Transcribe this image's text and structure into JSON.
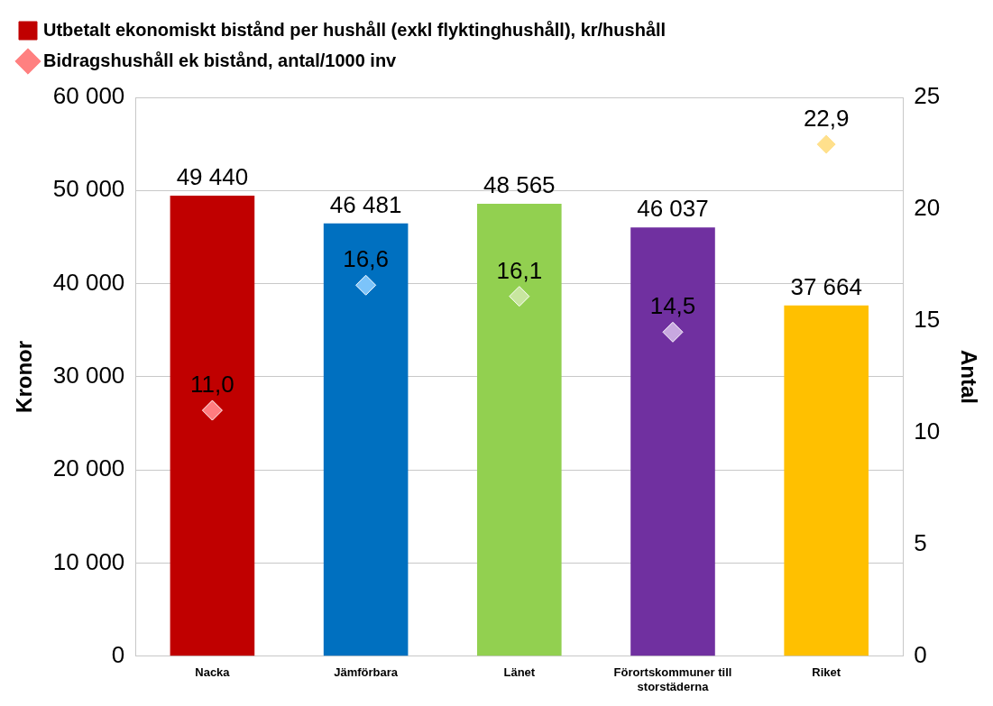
{
  "chart_data": {
    "type": "bar",
    "categories": [
      "Nacka",
      "Jämförbara",
      "Länet",
      "Förortskommuner till storstäderna",
      "Riket"
    ],
    "ylabel": "Kronor",
    "y2label": "Antal",
    "ylim": [
      0,
      60000
    ],
    "yticks": [
      {
        "value": 0,
        "label": "0"
      },
      {
        "value": 10000,
        "label": "10 000"
      },
      {
        "value": 20000,
        "label": "20 000"
      },
      {
        "value": 30000,
        "label": "30 000"
      },
      {
        "value": 40000,
        "label": "40 000"
      },
      {
        "value": 50000,
        "label": "50 000"
      },
      {
        "value": 60000,
        "label": "60 000"
      }
    ],
    "y2lim": [
      0,
      25
    ],
    "y2ticks": [
      0,
      5,
      10,
      15,
      20,
      25
    ],
    "grid": "y",
    "legend": "top",
    "series": [
      {
        "name": "Utbetalt ekonomiskt bistånd per hushåll (exkl flyktinghushåll), kr/hushåll",
        "color": "#c00000",
        "colors": [
          "#c00000",
          "#0070c0",
          "#92d050",
          "#7030a0",
          "#ffc000"
        ],
        "values": [
          49440,
          46481,
          48565,
          46037,
          37664
        ],
        "value_labels": [
          "49 440",
          "46 481",
          "48 565",
          "46 037",
          "37 664"
        ]
      },
      {
        "type": "scatter",
        "axis": "y2",
        "marker": "diamond",
        "name": "Bidragshushåll ek bistånd, antal/1000 inv",
        "color": "#ff8080",
        "colors": [
          "#ff7c80",
          "#7cc4fa",
          "#c8e6a0",
          "#c8a8e0",
          "#ffe08c"
        ],
        "values": [
          11.0,
          16.6,
          16.1,
          14.5,
          22.9
        ],
        "value_labels": [
          "11,0",
          "16,6",
          "16,1",
          "14,5",
          "22,9"
        ]
      }
    ]
  }
}
